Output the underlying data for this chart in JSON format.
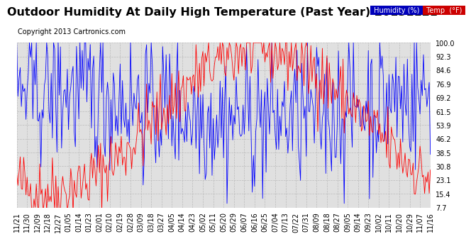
{
  "title": "Outdoor Humidity At Daily High Temperature (Past Year) 20131121",
  "copyright": "Copyright 2013 Cartronics.com",
  "legend_humidity": "Humidity (%)",
  "legend_temp": "Temp  (°F)",
  "color_humidity": "#0000ff",
  "color_temp": "#ff0000",
  "legend_bg_humidity": "#0000bb",
  "legend_bg_temp": "#cc0000",
  "bg_color": "#ffffff",
  "plot_bg_color": "#e0e0e0",
  "grid_color": "#bbbbbb",
  "yticks": [
    7.7,
    15.4,
    23.1,
    30.8,
    38.5,
    46.2,
    53.9,
    61.5,
    69.2,
    76.9,
    84.6,
    92.3,
    100.0
  ],
  "ylim": [
    7.7,
    100.0
  ],
  "title_fontsize": 11.5,
  "copyright_fontsize": 7,
  "tick_fontsize": 7,
  "xtick_labels": [
    "11/21",
    "11/30",
    "12/09",
    "12/18",
    "12/27",
    "01/05",
    "01/14",
    "01/23",
    "02/01",
    "02/10",
    "02/19",
    "02/28",
    "03/09",
    "03/18",
    "03/27",
    "04/05",
    "04/14",
    "04/23",
    "05/02",
    "05/11",
    "05/20",
    "05/29",
    "06/07",
    "06/16",
    "06/25",
    "07/04",
    "07/13",
    "07/22",
    "07/31",
    "08/09",
    "08/18",
    "08/27",
    "09/05",
    "09/14",
    "09/23",
    "10/02",
    "10/11",
    "10/20",
    "10/29",
    "11/07",
    "11/16"
  ]
}
